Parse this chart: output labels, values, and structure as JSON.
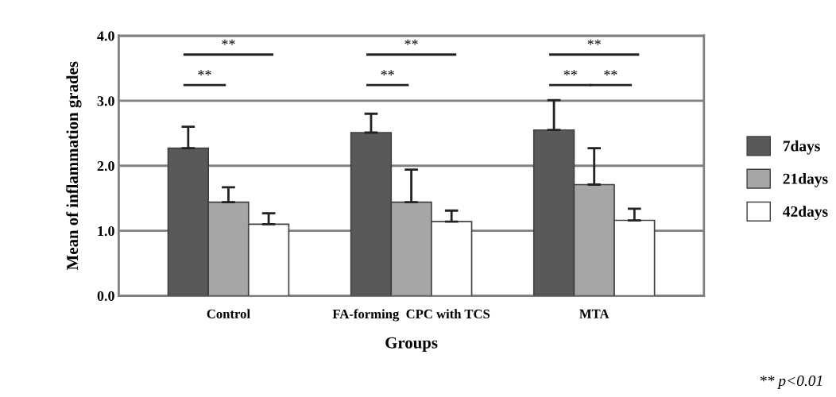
{
  "chart_data": {
    "type": "bar",
    "xlabel": "Groups",
    "ylabel": "Mean of inflammation grades",
    "categories": [
      "Control",
      "FA-forming  CPC with TCS",
      "MTA"
    ],
    "series": [
      {
        "name": "7days",
        "color": "#595959",
        "values": [
          2.27,
          2.51,
          2.55
        ],
        "errors": [
          0.33,
          0.29,
          0.46
        ]
      },
      {
        "name": "21days",
        "color": "#a6a6a6",
        "values": [
          1.44,
          1.44,
          1.71
        ],
        "errors": [
          0.23,
          0.5,
          0.56
        ]
      },
      {
        "name": "42days",
        "color": "#ffffff",
        "values": [
          1.1,
          1.14,
          1.16
        ],
        "errors": [
          0.17,
          0.17,
          0.18
        ]
      }
    ],
    "ylim": [
      0,
      4
    ],
    "yticks": [
      {
        "value": 0,
        "label": "0.0"
      },
      {
        "value": 1,
        "label": "1.0"
      },
      {
        "value": 2,
        "label": "2.0"
      },
      {
        "value": 3,
        "label": "3.0"
      },
      {
        "value": 4,
        "label": "4.0"
      }
    ],
    "grid": "y",
    "legend": "right",
    "annotations": [
      "**",
      "**",
      "**",
      "**",
      "**",
      "**",
      "**",
      "** p<0.01"
    ]
  }
}
